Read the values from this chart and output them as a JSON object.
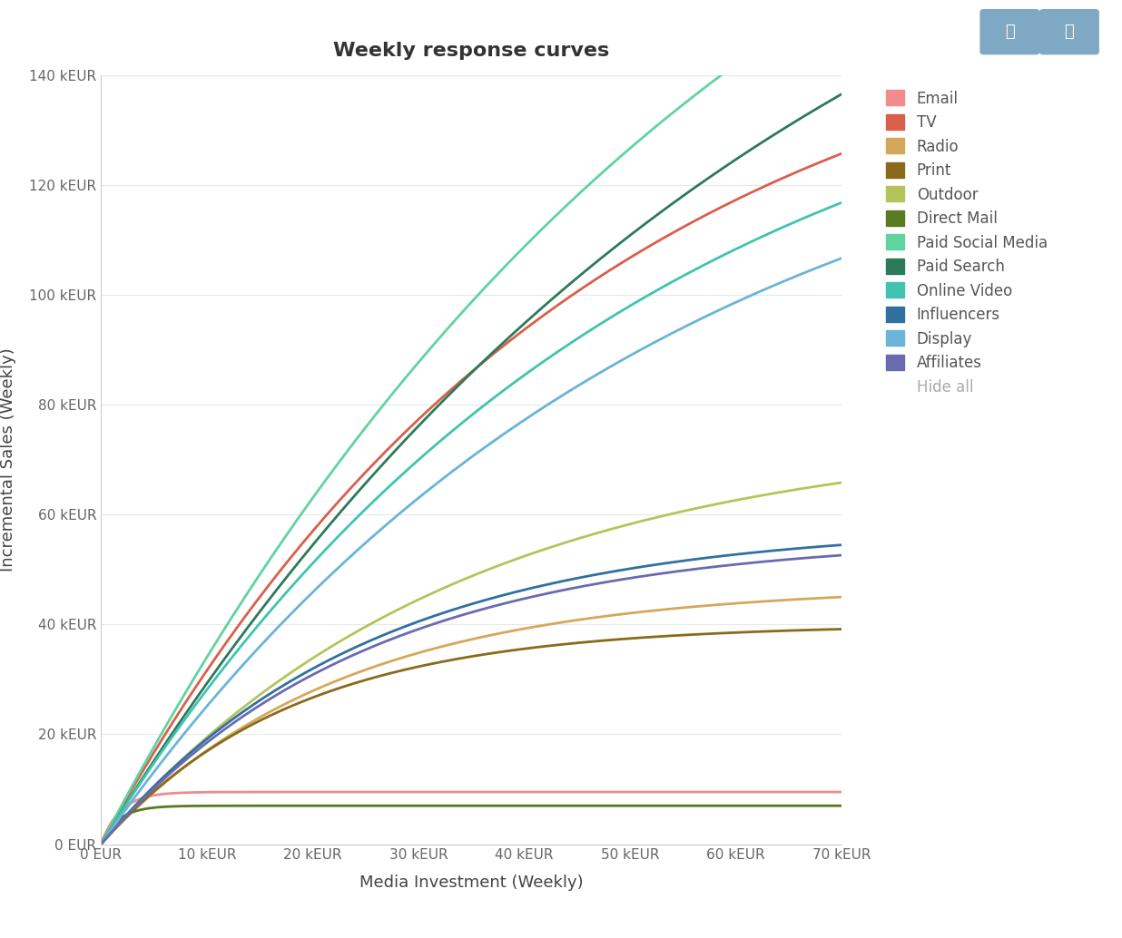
{
  "title": "Weekly response curves",
  "xlabel": "Media Investment (Weekly)",
  "ylabel": "Incremental Sales (Weekly)",
  "background_color": "#ffffff",
  "series": [
    {
      "name": "Email",
      "color": "#f28b8b",
      "asymptote": 9.5,
      "saturation_rate": 0.55
    },
    {
      "name": "TV",
      "color": "#d95f4b",
      "asymptote": 160.0,
      "saturation_rate": 0.022
    },
    {
      "name": "Radio",
      "color": "#d4a85a",
      "asymptote": 47.0,
      "saturation_rate": 0.045
    },
    {
      "name": "Print",
      "color": "#8a6a1a",
      "asymptote": 40.0,
      "saturation_rate": 0.055
    },
    {
      "name": "Outdoor",
      "color": "#b5c45a",
      "asymptote": 75.0,
      "saturation_rate": 0.03
    },
    {
      "name": "Direct Mail",
      "color": "#5a7a20",
      "asymptote": 7.0,
      "saturation_rate": 0.6
    },
    {
      "name": "Paid Social Media",
      "color": "#5fd4a0",
      "asymptote": 230.0,
      "saturation_rate": 0.016
    },
    {
      "name": "Paid Search",
      "color": "#2d7a5a",
      "asymptote": 210.0,
      "saturation_rate": 0.015
    },
    {
      "name": "Online Video",
      "color": "#40c4b0",
      "asymptote": 155.0,
      "saturation_rate": 0.02
    },
    {
      "name": "Influencers",
      "color": "#3070a0",
      "asymptote": 58.0,
      "saturation_rate": 0.04
    },
    {
      "name": "Display",
      "color": "#6ab4d8",
      "asymptote": 145.0,
      "saturation_rate": 0.019
    },
    {
      "name": "Affiliates",
      "color": "#6a6ab0",
      "asymptote": 56.0,
      "saturation_rate": 0.04
    }
  ],
  "x_max": 70,
  "y_max": 140,
  "x_ticks": [
    0,
    10,
    20,
    30,
    40,
    50,
    60,
    70
  ],
  "y_ticks": [
    0,
    20,
    40,
    60,
    80,
    100,
    120,
    140
  ],
  "x_tick_labels": [
    "0 EUR",
    "10 kEUR",
    "20 kEUR",
    "30 kEUR",
    "40 kEUR",
    "50 kEUR",
    "60 kEUR",
    "70 kEUR"
  ],
  "y_tick_labels": [
    "0 EUR",
    "20 kEUR",
    "40 kEUR",
    "60 kEUR",
    "80 kEUR",
    "100 kEUR",
    "120 kEUR",
    "140 kEUR"
  ],
  "line_width": 2.0,
  "btn1_color": "#7fa8c4",
  "btn2_color": "#7fa8c4"
}
